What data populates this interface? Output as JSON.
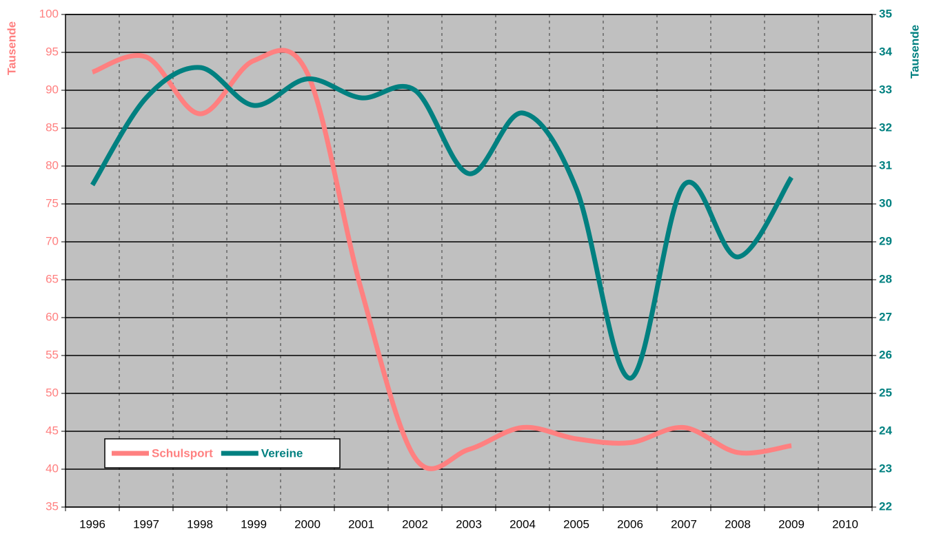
{
  "chart_data": {
    "type": "line",
    "y_label": "Tausende",
    "y2_label": "Tausende",
    "categories": [
      "1996",
      "1997",
      "1998",
      "1999",
      "2000",
      "2001",
      "2002",
      "2003",
      "2004",
      "2005",
      "2006",
      "2007",
      "2008",
      "2009",
      "2010"
    ],
    "series": [
      {
        "name": "Schulsport",
        "color": "#ff8080",
        "axis": "y",
        "values": [
          92.4,
          94.4,
          86.9,
          93.9,
          92.2,
          63.7,
          41.5,
          42.6,
          45.5,
          44.0,
          43.5,
          45.5,
          42.2,
          43.1,
          null
        ]
      },
      {
        "name": "Vereine",
        "color": "#008080",
        "axis": "y2",
        "values": [
          30.5,
          32.8,
          33.6,
          32.6,
          33.3,
          32.8,
          33.0,
          30.8,
          32.4,
          30.4,
          25.4,
          30.5,
          28.6,
          30.7,
          null
        ]
      }
    ],
    "ylim": [
      35,
      100
    ],
    "yticks": [
      35,
      40,
      45,
      50,
      55,
      60,
      65,
      70,
      75,
      80,
      85,
      90,
      95,
      100
    ],
    "y2lim": [
      22,
      35
    ],
    "y2ticks": [
      22,
      23,
      24,
      25,
      26,
      27,
      28,
      29,
      30,
      31,
      32,
      33,
      34,
      35
    ],
    "grid": true,
    "smooth": true,
    "legend": "bottom-left"
  }
}
